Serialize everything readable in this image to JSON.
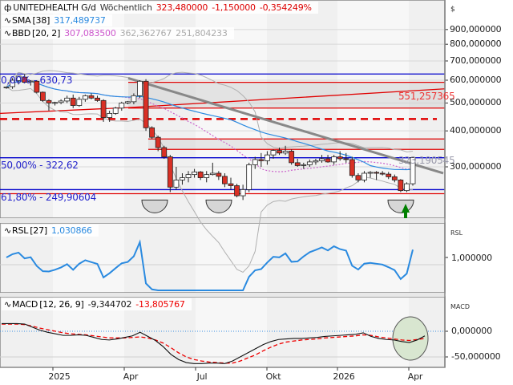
{
  "main": {
    "symbol": "UNITEDHEALTH G/d",
    "period": "Wöchentlich",
    "last": "323,480000",
    "change": "-1,150000",
    "change_pct": "-0,354249%",
    "sma_label": "SMA",
    "sma_param": "[38]",
    "sma_value": "317,489737",
    "bbd_label": "BBD",
    "bbd_param": "[20, 2]",
    "bbd_mid": "307,083500",
    "bbd_upper": "362,362767",
    "bbd_lower": "251,804233",
    "unit": "$",
    "fib0_label": "0,00% - 630,73",
    "fib50_label": "50,00% - 322,62",
    "fib618_label": "61,80% - 249,90604",
    "channel_label": "551,257365",
    "trend_label": "323,190545"
  },
  "rsl": {
    "label": "RSL",
    "param": "[27]",
    "value": "1,030866",
    "unit": "RSL",
    "axis": "1,000000"
  },
  "macd": {
    "label": "MACD",
    "param": "[12, 26, 9]",
    "value": "-9,344702",
    "signal": "-13,805767",
    "unit": "MACD",
    "axis": [
      "0,000000",
      "-50,000000"
    ]
  },
  "colors": {
    "up": "#ffffff",
    "down": "#d93025",
    "sma": "#2a8ae0",
    "bbd": "#cc66cc",
    "fib": "#0000cc",
    "red": "#e00000",
    "trend": "#888888",
    "arrow": "#008000"
  },
  "chart_data": [
    {
      "type": "candlestick",
      "title": "UNITEDHEALTH G/d Wöchentlich",
      "ylabel": "$",
      "yscale": "log",
      "yticks": [
        "900,000000",
        "800,000000",
        "700,000000",
        "600,000000",
        "500,000000",
        "400,000000",
        "300,000000"
      ],
      "xticks": [
        "2025",
        "Apr",
        "Jul",
        "Okt",
        "2026",
        "Apr"
      ],
      "ohlc": [
        [
          565,
          570,
          560,
          568
        ],
        [
          570,
          610,
          560,
          600
        ],
        [
          598,
          620,
          580,
          620
        ],
        [
          615,
          630,
          585,
          590
        ],
        [
          592,
          600,
          575,
          596
        ],
        [
          595,
          600,
          540,
          545
        ],
        [
          545,
          548,
          505,
          510
        ],
        [
          510,
          515,
          470,
          500
        ],
        [
          500,
          505,
          490,
          502
        ],
        [
          502,
          515,
          495,
          508
        ],
        [
          508,
          530,
          500,
          520
        ],
        [
          520,
          535,
          480,
          490
        ],
        [
          490,
          525,
          485,
          515
        ],
        [
          515,
          535,
          505,
          530
        ],
        [
          530,
          540,
          515,
          520
        ],
        [
          520,
          530,
          505,
          510
        ],
        [
          510,
          515,
          430,
          445
        ],
        [
          445,
          470,
          430,
          460
        ],
        [
          460,
          485,
          455,
          480
        ],
        [
          480,
          505,
          470,
          500
        ],
        [
          500,
          508,
          495,
          505
        ],
        [
          505,
          540,
          495,
          530
        ],
        [
          530,
          600,
          520,
          595
        ],
        [
          595,
          605,
          400,
          410
        ],
        [
          410,
          415,
          375,
          380
        ],
        [
          380,
          385,
          340,
          350
        ],
        [
          350,
          355,
          320,
          325
        ],
        [
          325,
          330,
          245,
          255
        ],
        [
          255,
          300,
          250,
          270
        ],
        [
          270,
          285,
          260,
          275
        ],
        [
          275,
          290,
          265,
          282
        ],
        [
          282,
          295,
          275,
          288
        ],
        [
          288,
          290,
          270,
          275
        ],
        [
          275,
          290,
          265,
          282
        ],
        [
          282,
          310,
          280,
          285
        ],
        [
          285,
          290,
          270,
          278
        ],
        [
          278,
          285,
          255,
          262
        ],
        [
          262,
          275,
          250,
          258
        ],
        [
          258,
          262,
          235,
          238
        ],
        [
          238,
          260,
          230,
          250
        ],
        [
          250,
          310,
          245,
          305
        ],
        [
          305,
          325,
          295,
          318
        ],
        [
          318,
          335,
          300,
          315
        ],
        [
          315,
          340,
          305,
          330
        ],
        [
          330,
          345,
          320,
          342
        ],
        [
          342,
          350,
          330,
          335
        ],
        [
          335,
          355,
          330,
          340
        ],
        [
          340,
          345,
          305,
          310
        ],
        [
          310,
          320,
          300,
          303
        ],
        [
          303,
          310,
          295,
          305
        ],
        [
          305,
          318,
          300,
          312
        ],
        [
          312,
          320,
          305,
          315
        ],
        [
          315,
          330,
          310,
          320
        ],
        [
          320,
          330,
          310,
          312
        ],
        [
          312,
          330,
          305,
          325
        ],
        [
          325,
          340,
          315,
          320
        ],
        [
          320,
          335,
          310,
          318
        ],
        [
          318,
          325,
          275,
          280
        ],
        [
          280,
          285,
          265,
          270
        ],
        [
          270,
          290,
          265,
          285
        ],
        [
          285,
          290,
          275,
          287
        ],
        [
          287,
          290,
          270,
          285
        ],
        [
          285,
          290,
          280,
          283
        ],
        [
          283,
          288,
          272,
          277
        ],
        [
          277,
          282,
          265,
          270
        ],
        [
          270,
          272,
          245,
          248
        ],
        [
          248,
          265,
          245,
          262
        ],
        [
          262,
          325,
          258,
          323
        ]
      ],
      "sma": 38,
      "bollinger": [
        20,
        2
      ],
      "fibonacci": {
        "0%": 630.73,
        "50%": 322.62,
        "61.8%": 249.90604
      },
      "lines": {
        "channel": 551.257365,
        "trendline": 323.190545
      }
    },
    {
      "type": "line",
      "title": "RSL [27]",
      "yticks": [
        "1,000000"
      ],
      "series": [
        {
          "name": "RSL",
          "last": 1.030866
        }
      ]
    },
    {
      "type": "line",
      "title": "MACD [12, 26, 9]",
      "yticks": [
        "0,000000",
        "-50,000000"
      ],
      "series": [
        {
          "name": "MACD",
          "last": -9.344702,
          "values": [
            15,
            15,
            15,
            14,
            8,
            2,
            -2,
            -5,
            -8,
            -8,
            -7,
            -8,
            -12,
            -16,
            -17,
            -15,
            -12,
            -9,
            -2,
            -10,
            -18,
            -30,
            -45,
            -55,
            -61,
            -63,
            -63,
            -62,
            -62,
            -63,
            -58,
            -50,
            -42,
            -34,
            -26,
            -20,
            -16,
            -15,
            -14,
            -14,
            -13,
            -12,
            -10,
            -9,
            -8,
            -7,
            -6,
            -3,
            -10,
            -14,
            -16,
            -17,
            -20,
            -22,
            -17,
            -9
          ]
        },
        {
          "name": "Signal",
          "last": -13.805767,
          "values": [
            14,
            14,
            14,
            13,
            10,
            6,
            3,
            0,
            -3,
            -5,
            -6,
            -7,
            -9,
            -11,
            -13,
            -13,
            -13,
            -12,
            -11,
            -13,
            -17,
            -23,
            -32,
            -42,
            -50,
            -55,
            -58,
            -60,
            -61,
            -62,
            -62,
            -58,
            -52,
            -46,
            -38,
            -31,
            -25,
            -21,
            -19,
            -17,
            -16,
            -15,
            -13,
            -12,
            -11,
            -10,
            -9,
            -7,
            -8,
            -11,
            -13,
            -15,
            -17,
            -18,
            -16,
            -14
          ]
        }
      ]
    }
  ]
}
